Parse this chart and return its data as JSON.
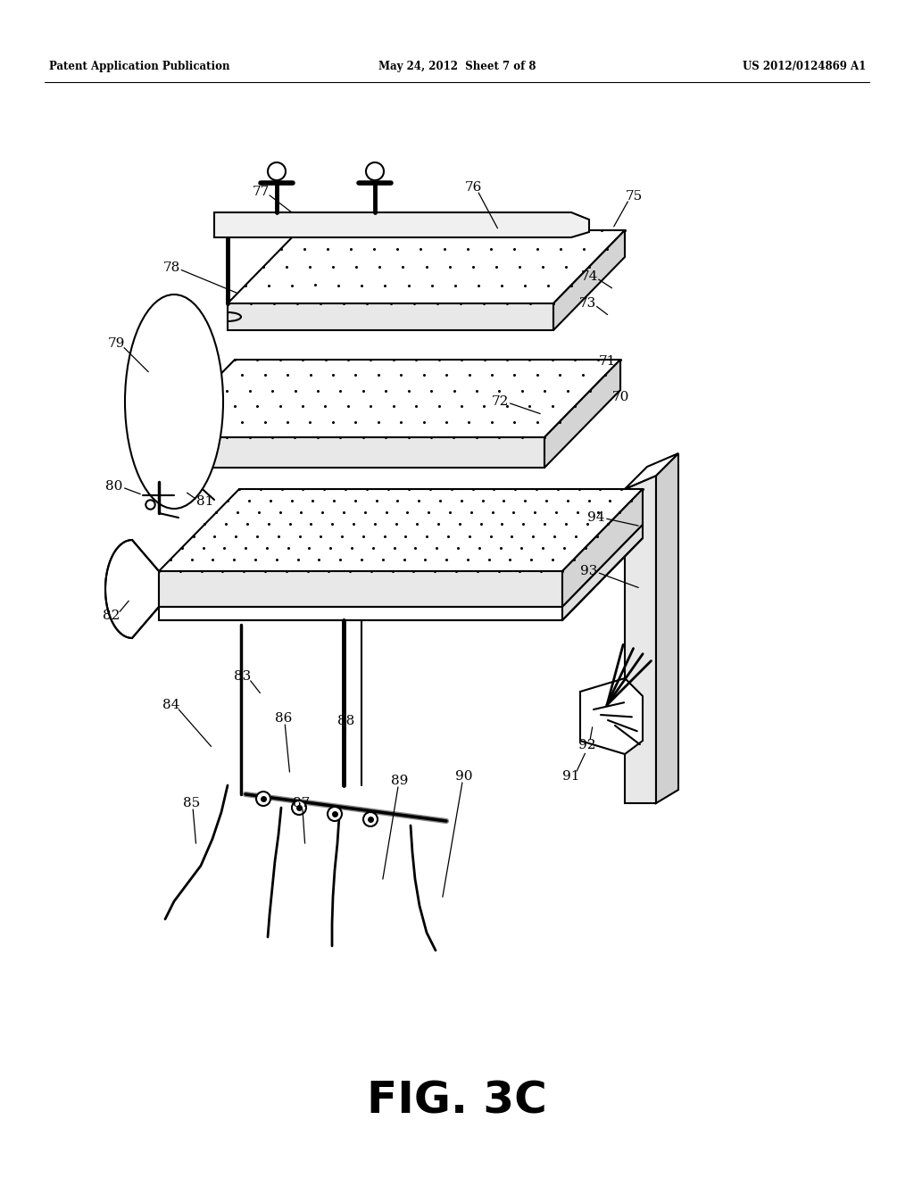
{
  "header_left": "Patent Application Publication",
  "header_center": "May 24, 2012  Sheet 7 of 8",
  "header_right": "US 2012/0124869 A1",
  "figure_label": "FIG. 3C",
  "bg": "#ffffff"
}
